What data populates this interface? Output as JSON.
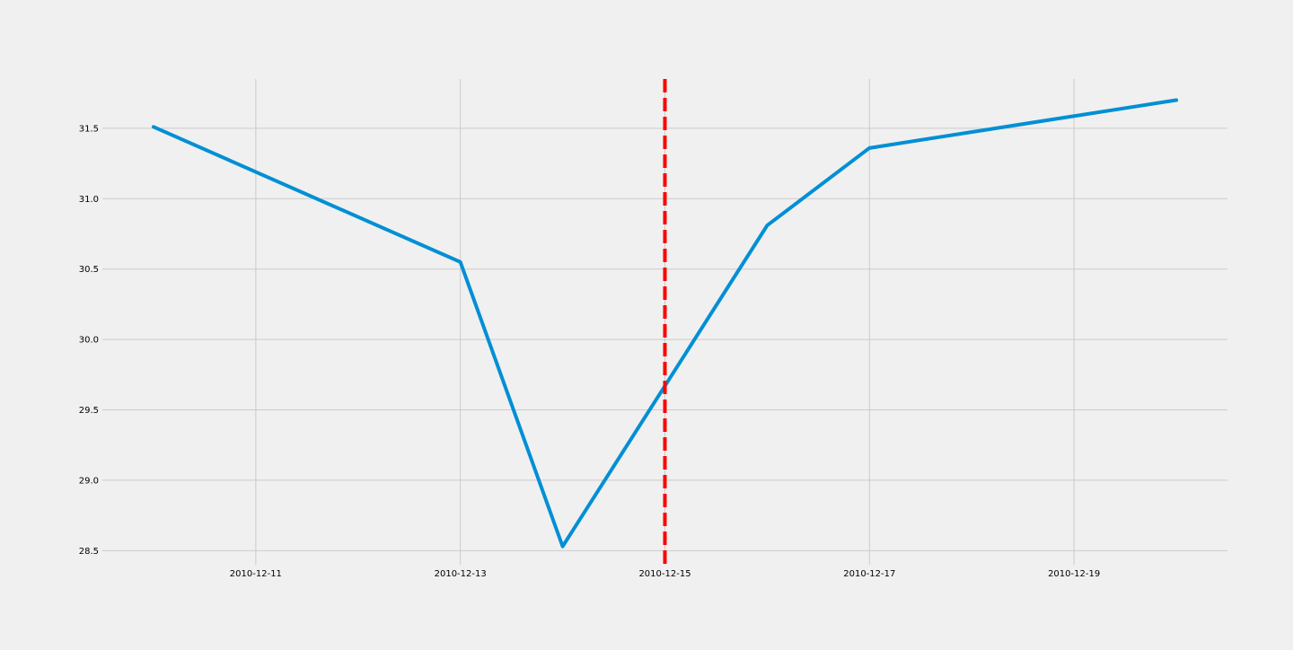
{
  "chart_data": {
    "type": "line",
    "title": "",
    "xlabel": "",
    "ylabel": "",
    "x": [
      "2010-12-10",
      "2010-12-13",
      "2010-12-14",
      "2010-12-16",
      "2010-12-17",
      "2010-12-20"
    ],
    "series": [
      {
        "values": [
          31.51,
          30.55,
          28.53,
          30.81,
          31.36,
          31.7
        ]
      }
    ],
    "xlim": [
      "2010-12-09 12:00",
      "2010-12-20 12:00"
    ],
    "ylim": [
      28.4,
      31.85
    ],
    "xticks": [
      "2010-12-11",
      "2010-12-13",
      "2010-12-15",
      "2010-12-17",
      "2010-12-19"
    ],
    "yticks": [
      28.5,
      29.0,
      29.5,
      30.0,
      30.5,
      31.0,
      31.5
    ],
    "ytick_labels": [
      "28.5",
      "29.0",
      "29.5",
      "30.0",
      "30.5",
      "31.0",
      "31.5"
    ],
    "annotations": [
      {
        "type": "vertical-line",
        "x": "2010-12-15",
        "style": "dashed",
        "color": "#ff0000"
      }
    ],
    "grid": true,
    "line_color": "#008fd5",
    "grid_color": "#cbcbcb",
    "background": "#f0f0f0"
  }
}
